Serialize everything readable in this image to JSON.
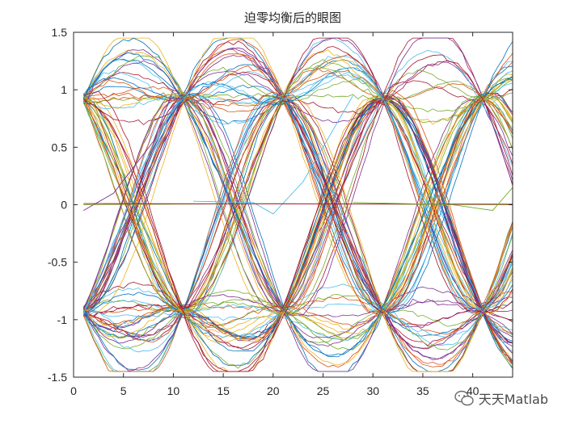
{
  "chart_data": {
    "type": "line",
    "title": "迫零均衡后的眼图",
    "xlabel": "",
    "ylabel": "",
    "xlim": [
      0,
      44
    ],
    "ylim": [
      -1.5,
      1.5
    ],
    "xticks": [
      0,
      5,
      10,
      15,
      20,
      25,
      30,
      35,
      40
    ],
    "yticks": [
      1.5,
      1,
      0.5,
      0,
      -0.5,
      -1,
      -1.5
    ],
    "xtick_labels": [
      "0",
      "5",
      "10",
      "15",
      "20",
      "25",
      "30",
      "35",
      "40"
    ],
    "ytick_labels": [
      "1.5",
      "1",
      "0.5",
      "0",
      "-0.5",
      "-1",
      "-1.5"
    ],
    "grid": false,
    "legend": "none",
    "symbol_period": 10,
    "eye_crossings_x": [
      6,
      16,
      26,
      36
    ],
    "signal_levels": [
      -1,
      0,
      1
    ],
    "trace_count": 100,
    "series_palette": [
      "#0072BD",
      "#D95319",
      "#EDB120",
      "#7E2F8E",
      "#77AC30",
      "#4DBEEE",
      "#A2142F"
    ]
  },
  "watermark": {
    "text": "天天Matlab",
    "icon": "wechat-icon"
  }
}
